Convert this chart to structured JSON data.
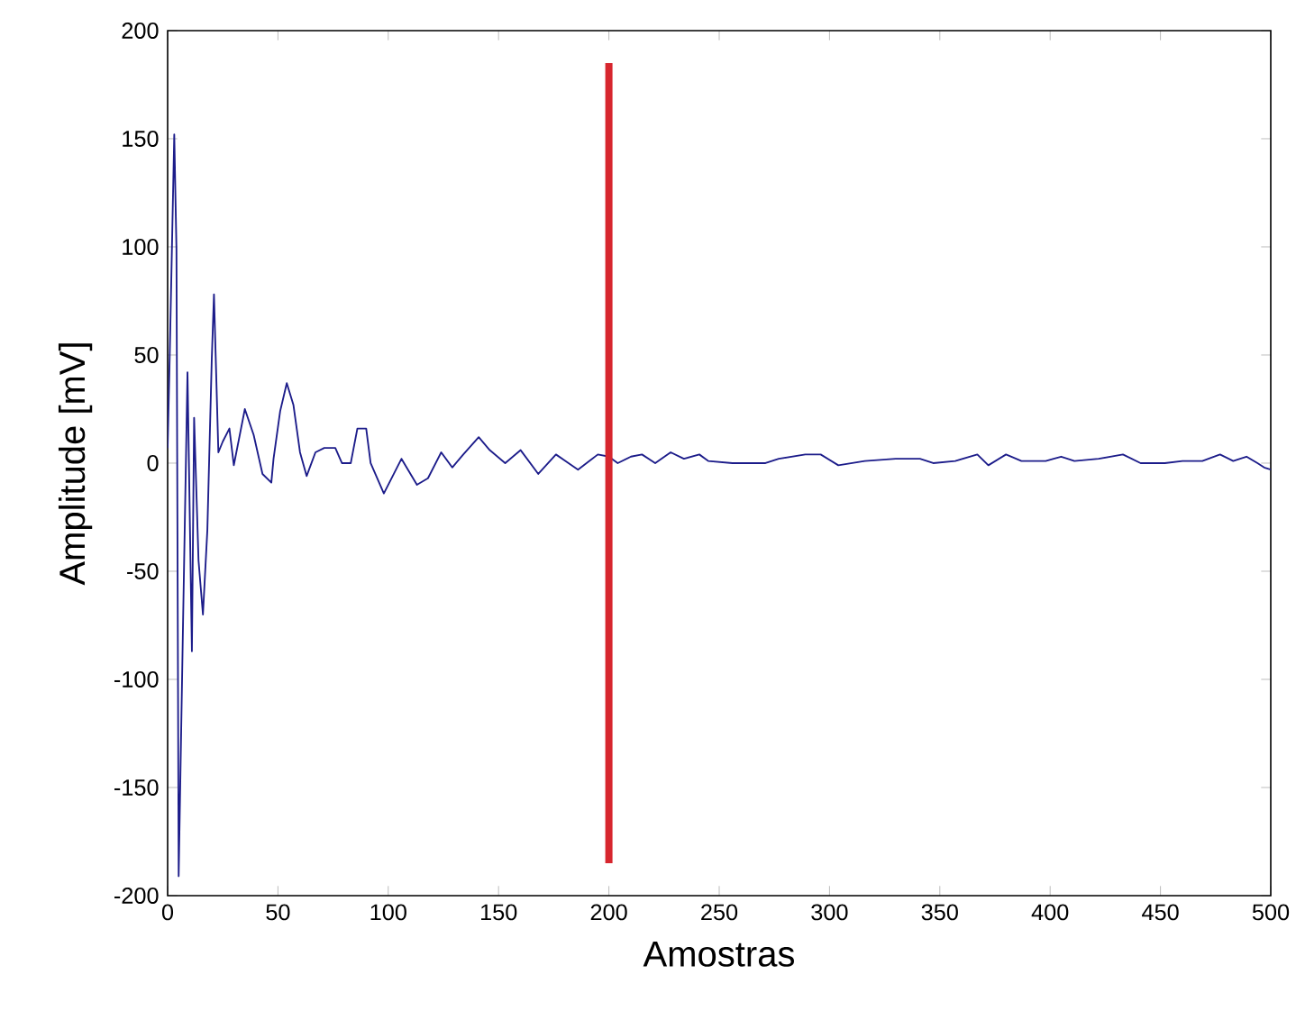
{
  "chart_data": {
    "type": "line",
    "xlabel": "Amostras",
    "ylabel": "Amplitude [mV]",
    "xlim": [
      0,
      500
    ],
    "ylim": [
      -200,
      200
    ],
    "xticks": [
      0,
      50,
      100,
      150,
      200,
      250,
      300,
      350,
      400,
      450,
      500
    ],
    "yticks": [
      -200,
      -150,
      -100,
      -50,
      0,
      50,
      100,
      150,
      200
    ],
    "grid": false,
    "marker": "none",
    "line_style": "solid",
    "series": [
      {
        "color": "#1c1c8a",
        "x": [
          0,
          1,
          3,
          4,
          5,
          7,
          9,
          11,
          12,
          14,
          16,
          18,
          20,
          21,
          23,
          25,
          28,
          30,
          35,
          39,
          43,
          47,
          48,
          51,
          54,
          57,
          60,
          63,
          67,
          71,
          76,
          79,
          83,
          86,
          90,
          92,
          98,
          106,
          113,
          118,
          124,
          129,
          134,
          141,
          146,
          153,
          160,
          168,
          176,
          186,
          195,
          200,
          204,
          210,
          215,
          221,
          228,
          234,
          241,
          245,
          256,
          271,
          277,
          289,
          296,
          304,
          316,
          330,
          341,
          347,
          357,
          367,
          372,
          380,
          387,
          398,
          405,
          411,
          422,
          433,
          441,
          452,
          460,
          469,
          477,
          483,
          489,
          494,
          497,
          500
        ],
        "values": [
          7,
          52,
          152,
          99,
          -191,
          -73,
          42,
          -87,
          21,
          -45,
          -70,
          -31,
          48,
          78,
          5,
          10,
          16,
          -1,
          25,
          13,
          -5,
          -9,
          2,
          24,
          37,
          27,
          5,
          -6,
          5,
          7,
          7,
          0,
          0,
          16,
          16,
          0,
          -14,
          2,
          -10,
          -7,
          5,
          -2,
          4,
          12,
          6,
          0,
          6,
          -5,
          4,
          -3,
          4,
          3,
          0,
          3,
          4,
          0,
          5,
          2,
          4,
          1,
          0,
          0,
          2,
          4,
          4,
          -1,
          1,
          2,
          2,
          0,
          1,
          4,
          -1,
          4,
          1,
          1,
          3,
          1,
          2,
          4,
          0,
          0,
          1,
          1,
          4,
          1,
          3,
          0,
          -2,
          -3
        ]
      },
      {
        "color": "#d7262e",
        "x": [
          200,
          200
        ],
        "values": [
          185,
          -185
        ]
      }
    ]
  }
}
